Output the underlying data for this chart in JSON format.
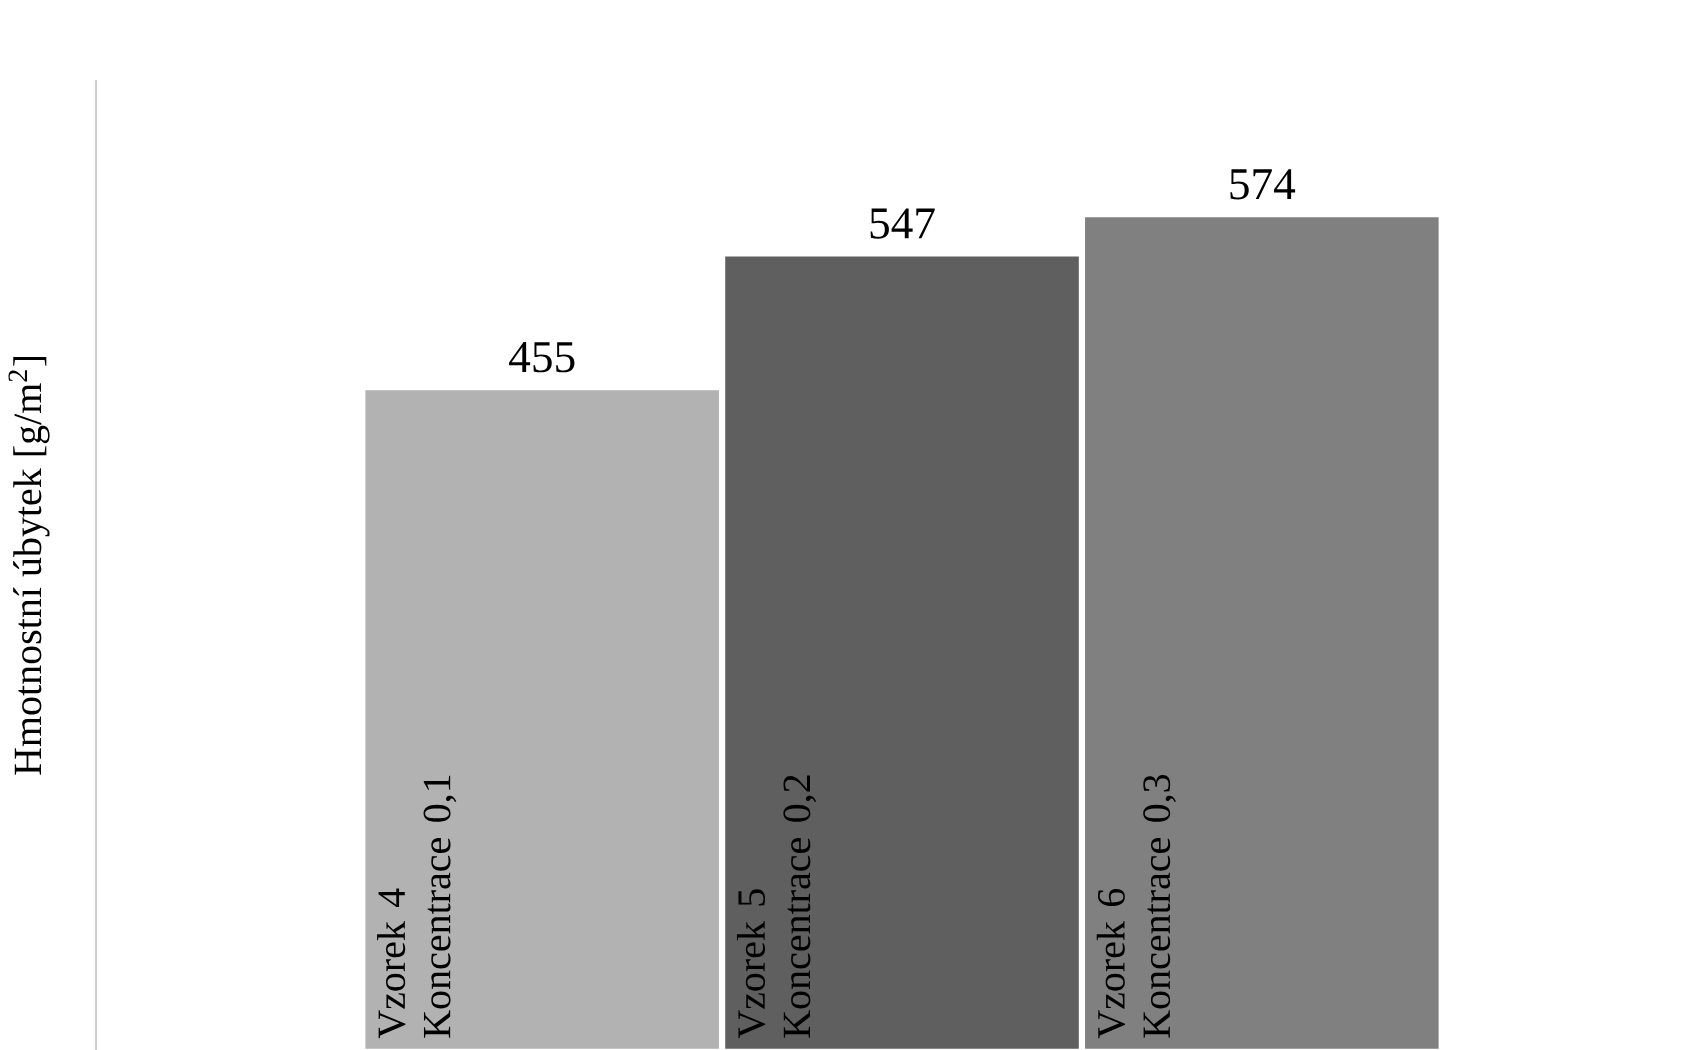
{
  "chart_data": {
    "type": "bar",
    "ylabel": "Hmotnostní úbytek [g/m$^{2}$]",
    "categories": [
      "Vzorek 4 Koncentrace 0,1",
      "Vzorek 5 Koncentrace 0,2",
      "Vzorek 6 Koncentrace 0,3"
    ],
    "values": [
      455,
      547,
      574
    ],
    "colors": [
      "#b2b2b2",
      "#5f5f5f",
      "#808080"
    ],
    "data_labels": true
  }
}
